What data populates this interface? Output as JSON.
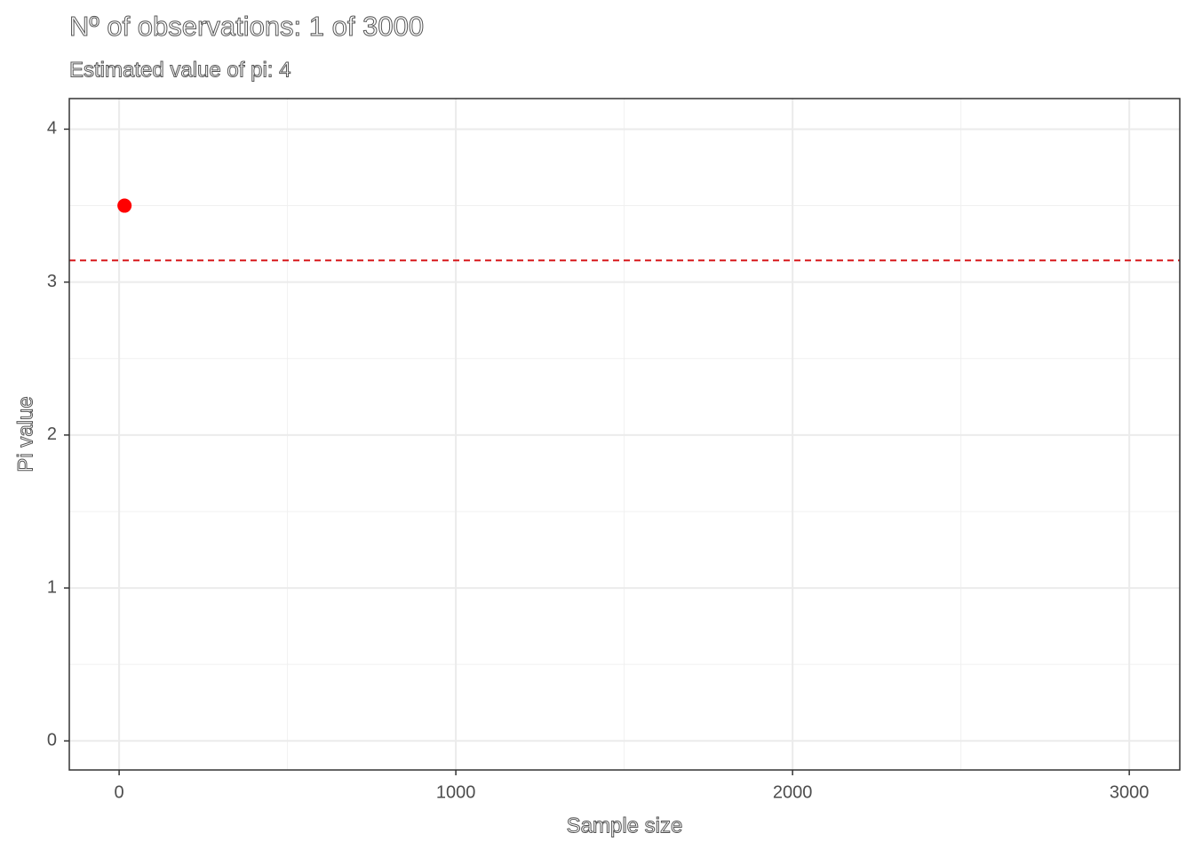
{
  "chart_data": {
    "type": "scatter",
    "title": "Nº of observations: 1 of 3000",
    "subtitle": "Estimated value of pi: 4",
    "x_label": "Sample size",
    "y_label": "Pi value",
    "x": [
      16
    ],
    "values": [
      3.5
    ],
    "color": "#ff0000",
    "reference_line": {
      "value": 3.1416,
      "color": "#d7191c",
      "dashed": true
    },
    "xlim": [
      -148,
      3150
    ],
    "ylim": [
      -0.19,
      4.2
    ],
    "xticks": [
      0,
      1000,
      2000,
      3000
    ],
    "yticks": [
      0,
      1,
      2,
      3,
      4
    ],
    "x_minor_ticks": [
      500,
      1500,
      2500
    ],
    "y_minor_ticks": [
      0.5,
      1.5,
      2.5,
      3.5
    ],
    "grid": true
  }
}
